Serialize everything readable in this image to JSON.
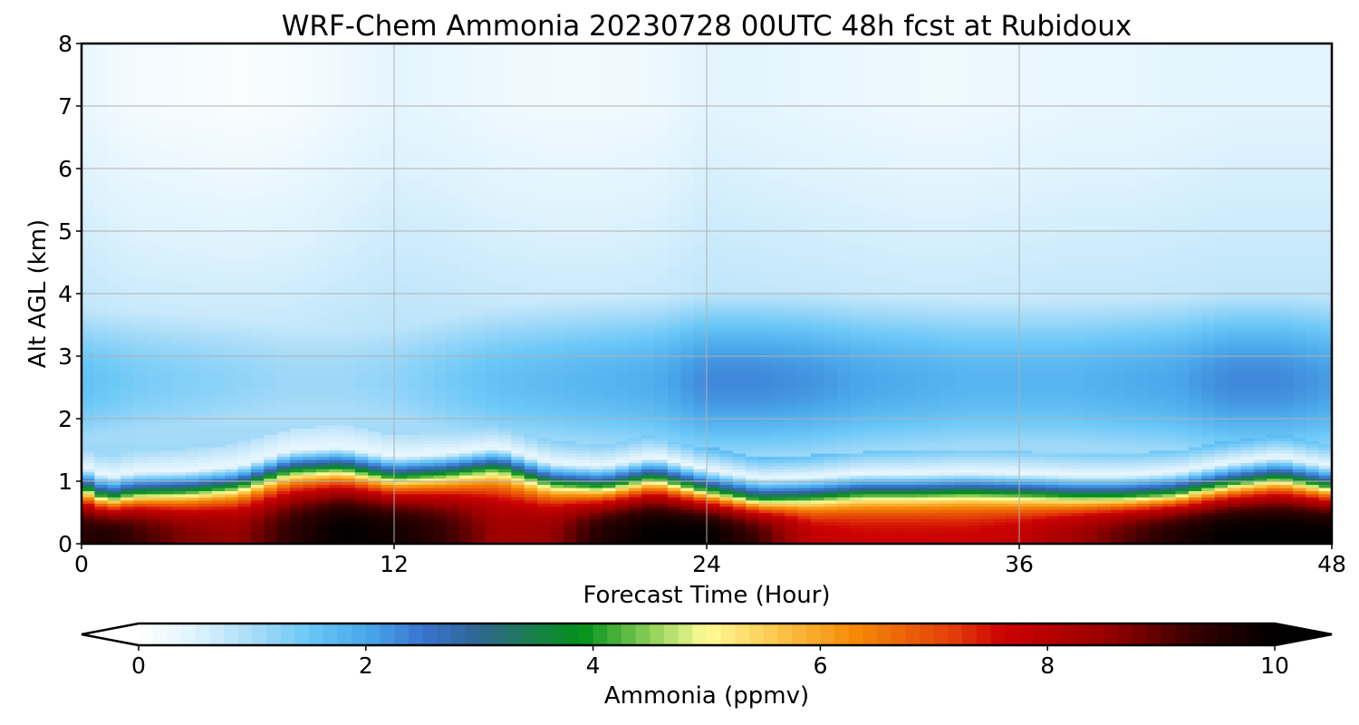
{
  "chart_data": {
    "type": "heatmap",
    "title": "WRF-Chem Ammonia  20230728 00UTC 48h fcst at Rubidoux",
    "xlabel": "Forecast Time (Hour)",
    "ylabel": "Alt AGL (km)",
    "xlim": [
      0,
      48
    ],
    "ylim": [
      0,
      8
    ],
    "xticks": [
      0,
      12,
      24,
      36,
      48
    ],
    "yticks": [
      0,
      1,
      2,
      3,
      4,
      5,
      6,
      7,
      8
    ],
    "grid": true,
    "colorbar": {
      "label": "Ammonia  (ppmv)",
      "min": 0,
      "max": 10,
      "ticks": [
        0,
        2,
        4,
        6,
        8,
        10
      ],
      "extend": "both",
      "orientation": "horizontal",
      "stops": [
        {
          "v": 0.0,
          "c": "#ffffff"
        },
        {
          "v": 0.5,
          "c": "#dff3fd"
        },
        {
          "v": 1.0,
          "c": "#a9dcf8"
        },
        {
          "v": 1.5,
          "c": "#6ac7f7"
        },
        {
          "v": 2.0,
          "c": "#4aa8ea"
        },
        {
          "v": 2.5,
          "c": "#3a74d0"
        },
        {
          "v": 3.0,
          "c": "#2d6690"
        },
        {
          "v": 3.5,
          "c": "#1a8048"
        },
        {
          "v": 3.9,
          "c": "#00901a"
        },
        {
          "v": 4.5,
          "c": "#8ccf58"
        },
        {
          "v": 5.0,
          "c": "#fffb98"
        },
        {
          "v": 5.6,
          "c": "#fbc84e"
        },
        {
          "v": 6.3,
          "c": "#f58a05"
        },
        {
          "v": 7.2,
          "c": "#e23a0a"
        },
        {
          "v": 7.6,
          "c": "#cd0202"
        },
        {
          "v": 8.5,
          "c": "#9a0000"
        },
        {
          "v": 9.3,
          "c": "#350000"
        },
        {
          "v": 10.0,
          "c": "#000000"
        }
      ]
    },
    "field": {
      "description_units": "ppmv",
      "x": [
        0,
        1,
        2,
        4,
        6,
        8,
        10,
        12,
        14,
        16,
        18,
        20,
        22,
        24,
        26,
        28,
        30,
        32,
        34,
        36,
        38,
        40,
        42,
        44,
        46,
        48
      ],
      "boundary_layer_top_km": [
        0.9,
        0.72,
        0.8,
        0.82,
        0.9,
        1.15,
        1.2,
        1.05,
        1.1,
        1.2,
        0.95,
        0.9,
        1.05,
        0.85,
        0.7,
        0.72,
        0.78,
        0.78,
        0.8,
        0.78,
        0.75,
        0.75,
        0.8,
        0.95,
        1.05,
        0.9
      ],
      "surface_max_ppmv": [
        9.5,
        9.6,
        9.3,
        8.7,
        8.5,
        9.4,
        10.0,
        9.8,
        9.3,
        8.4,
        8.5,
        9.6,
        10.0,
        10.0,
        9.2,
        7.8,
        7.6,
        7.6,
        7.6,
        7.8,
        8.3,
        9.0,
        9.6,
        10.0,
        10.0,
        10.0
      ],
      "free_troposphere_max_ppmv": [
        1.6,
        1.5,
        1.4,
        1.3,
        1.2,
        1.1,
        1.1,
        1.2,
        1.4,
        1.6,
        1.7,
        1.8,
        1.9,
        2.3,
        2.3,
        2.2,
        2.0,
        1.9,
        1.8,
        1.8,
        1.8,
        1.9,
        2.0,
        2.3,
        2.3,
        2.1
      ],
      "upper_min_ppmv": [
        0.4,
        0.3,
        0.2,
        0.15,
        0.1,
        0.15,
        0.3,
        0.45,
        0.4,
        0.3,
        0.25,
        0.25,
        0.3,
        0.5,
        0.45,
        0.4,
        0.35,
        0.3,
        0.3,
        0.35,
        0.4,
        0.4,
        0.45,
        0.5,
        0.5,
        0.5
      ]
    }
  }
}
